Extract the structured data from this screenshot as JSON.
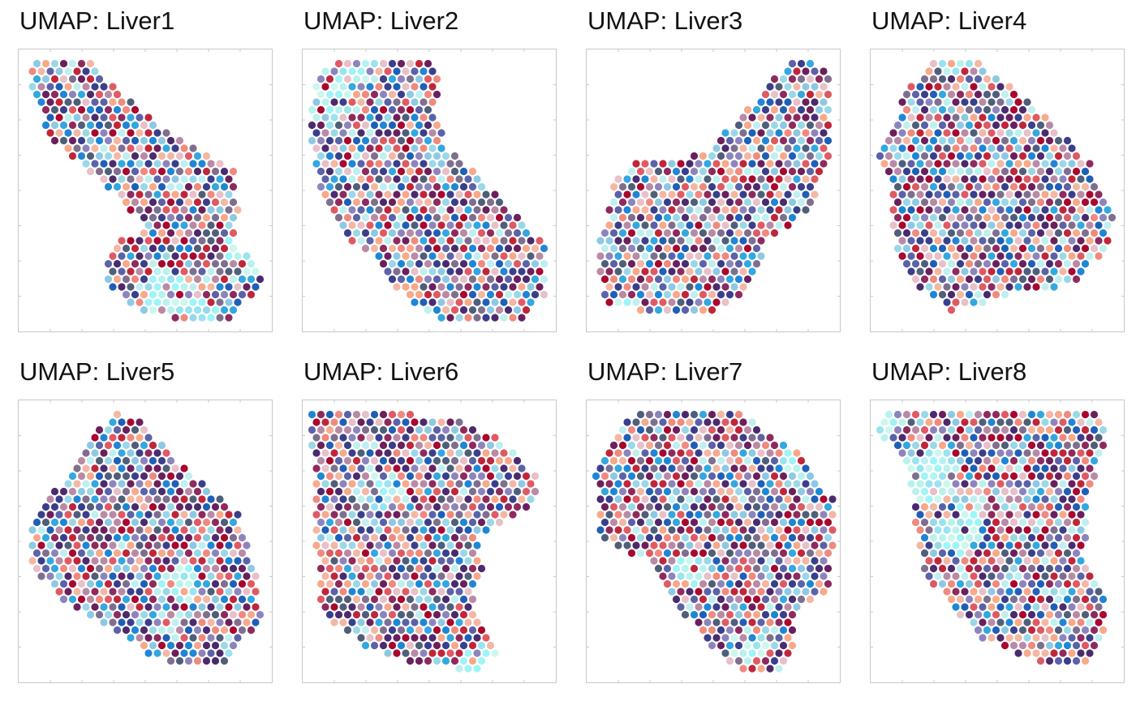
{
  "chart_data": [
    {
      "type": "scatter",
      "title": "UMAP: Liver1",
      "xlabel": "",
      "ylabel": "",
      "grid": false,
      "legend": "none"
    },
    {
      "type": "scatter",
      "title": "UMAP: Liver2",
      "xlabel": "",
      "ylabel": "",
      "grid": false,
      "legend": "none"
    },
    {
      "type": "scatter",
      "title": "UMAP: Liver3",
      "xlabel": "",
      "ylabel": "",
      "grid": false,
      "legend": "none"
    },
    {
      "type": "scatter",
      "title": "UMAP: Liver4",
      "xlabel": "",
      "ylabel": "",
      "grid": false,
      "legend": "none"
    },
    {
      "type": "scatter",
      "title": "UMAP: Liver5",
      "xlabel": "",
      "ylabel": "",
      "grid": false,
      "legend": "none"
    },
    {
      "type": "scatter",
      "title": "UMAP: Liver6",
      "xlabel": "",
      "ylabel": "",
      "grid": false,
      "legend": "none"
    },
    {
      "type": "scatter",
      "title": "UMAP: Liver7",
      "xlabel": "",
      "ylabel": "",
      "grid": false,
      "legend": "none"
    },
    {
      "type": "scatter",
      "title": "UMAP: Liver8",
      "xlabel": "",
      "ylabel": "",
      "grid": false,
      "legend": "none"
    }
  ],
  "colors": {
    "palette": [
      "#a8072e",
      "#c0263a",
      "#e05a63",
      "#f08a7e",
      "#f7a98a",
      "#f4b7a3",
      "#8e2a5e",
      "#6b1f5c",
      "#4b2a6e",
      "#3a3f8c",
      "#5b62a8",
      "#8e84bd",
      "#1f5fb8",
      "#1f86d6",
      "#33a7e0",
      "#8ec9e4",
      "#9ad8e8",
      "#bfeff0",
      "#e8c0c8",
      "#b98aa6",
      "#7f6f8f",
      "#4f5f7a"
    ],
    "pale": [
      "#9ff4f8",
      "#b8f2ef",
      "#cdf7ee",
      "#9ae3f0"
    ],
    "frame": "#c8c8c8"
  }
}
